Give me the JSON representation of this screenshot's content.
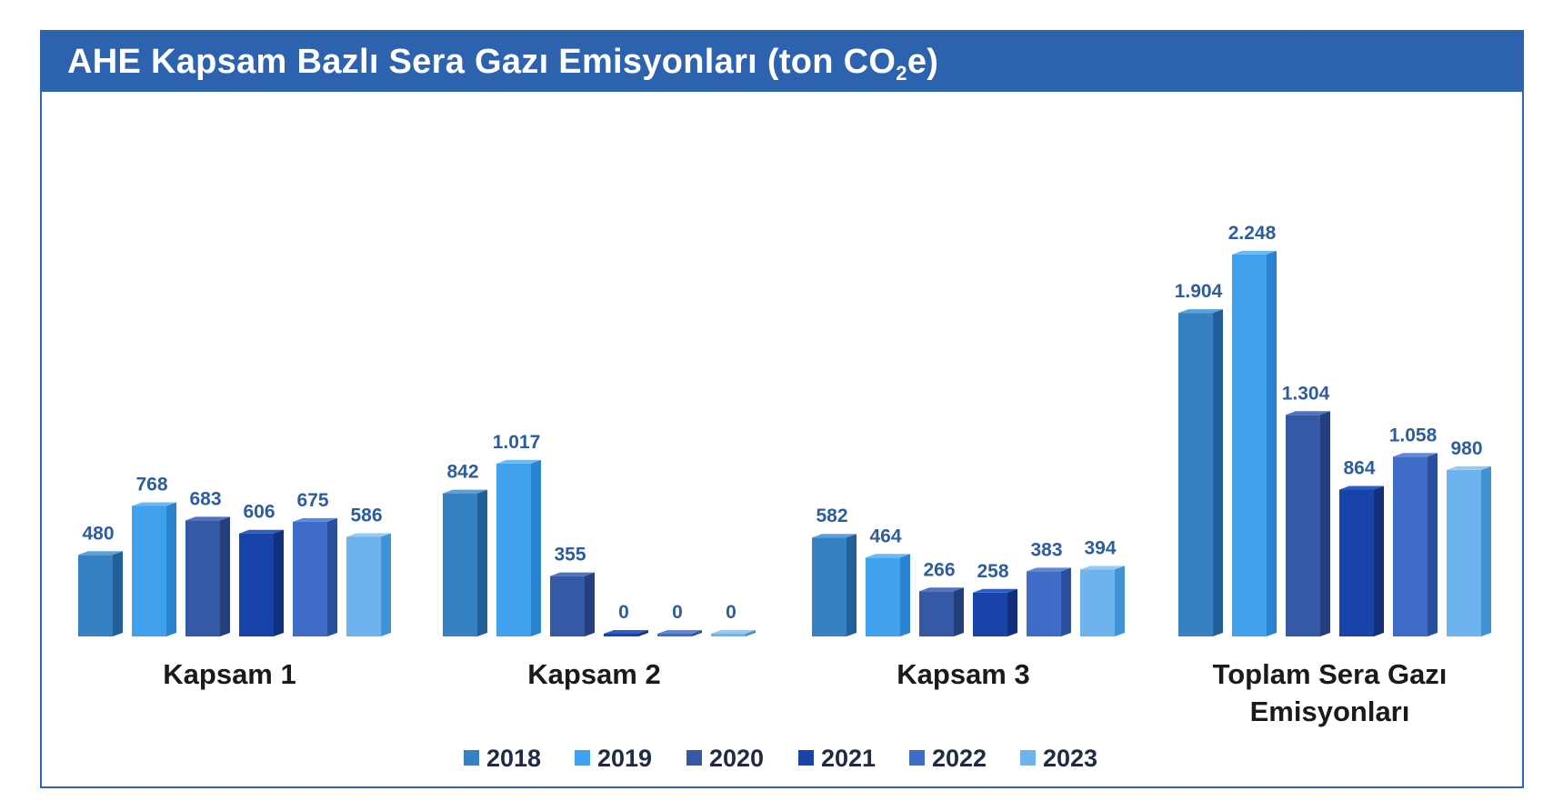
{
  "title": {
    "main": "AHE Kapsam Bazlı Sera Gazı Emisyonları (ton CO",
    "sub": "2",
    "tail": "e)"
  },
  "chart_data": {
    "type": "bar",
    "title": "AHE Kapsam Bazlı Sera Gazı Emisyonları (ton CO2e)",
    "categories": [
      "Kapsam 1",
      "Kapsam 2",
      "Kapsam 3",
      "Toplam Sera Gazı Emisyonları"
    ],
    "category_lines": [
      [
        "Kapsam 1"
      ],
      [
        "Kapsam 2"
      ],
      [
        "Kapsam 3"
      ],
      [
        "Toplam Sera Gazı",
        "Emisyonları"
      ]
    ],
    "series": [
      {
        "name": "2018",
        "values": [
          480,
          842,
          582,
          1904
        ],
        "labels": [
          "480",
          "842",
          "582",
          "1.904"
        ],
        "color": "#3581c4",
        "side": "#23609a",
        "top": "#5aa0db"
      },
      {
        "name": "2019",
        "values": [
          768,
          1017,
          464,
          2248
        ],
        "labels": [
          "768",
          "1.017",
          "464",
          "2.248"
        ],
        "color": "#40a2ee",
        "side": "#2a83cf",
        "top": "#6cbaf4"
      },
      {
        "name": "2020",
        "values": [
          683,
          355,
          266,
          1304
        ],
        "labels": [
          "683",
          "355",
          "266",
          "1.304"
        ],
        "color": "#3659a6",
        "side": "#243f7c",
        "top": "#4f74bf"
      },
      {
        "name": "2021",
        "values": [
          606,
          0,
          258,
          864
        ],
        "labels": [
          "606",
          "0",
          "258",
          "864"
        ],
        "color": "#1843a8",
        "side": "#112f7a",
        "top": "#2d5cc4"
      },
      {
        "name": "2022",
        "values": [
          675,
          0,
          383,
          1058
        ],
        "labels": [
          "675",
          "0",
          "383",
          "1.058"
        ],
        "color": "#3f6cc6",
        "side": "#2a4f9c",
        "top": "#6088d8"
      },
      {
        "name": "2023",
        "values": [
          586,
          0,
          394,
          980
        ],
        "labels": [
          "586",
          "0",
          "394",
          "980"
        ],
        "color": "#6db3ee",
        "side": "#3f92d4",
        "top": "#95caf5"
      }
    ],
    "ylim": [
      0,
      2500
    ],
    "legend": "bottom-center",
    "grid": false
  }
}
